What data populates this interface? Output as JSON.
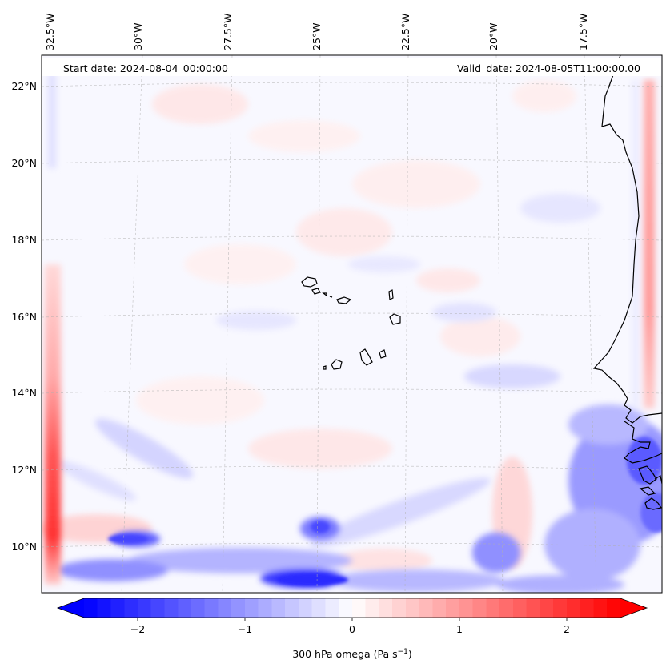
{
  "header": {
    "start_date": "Start date: 2024-08-04_00:00:00",
    "valid_date": "Valid_date: 2024-08-05T11:00:00.00"
  },
  "map": {
    "lon_labels": [
      "32.5°W",
      "30°W",
      "27.5°W",
      "25°W",
      "22.5°W",
      "20°W",
      "17.5°W"
    ],
    "lat_labels": [
      "22°N",
      "20°N",
      "18°N",
      "16°N",
      "14°N",
      "12°N",
      "10°N"
    ]
  },
  "colorbar": {
    "ticks": [
      "−2",
      "−1",
      "0",
      "1",
      "2"
    ],
    "label_main": "300 hPa omega (Pa s",
    "label_sup": "−1",
    "label_end": ")",
    "range": [
      -2.75,
      2.75
    ],
    "colors": {
      "negative": "#0000ff",
      "zero": "#ffffff",
      "positive": "#ff0000"
    }
  }
}
